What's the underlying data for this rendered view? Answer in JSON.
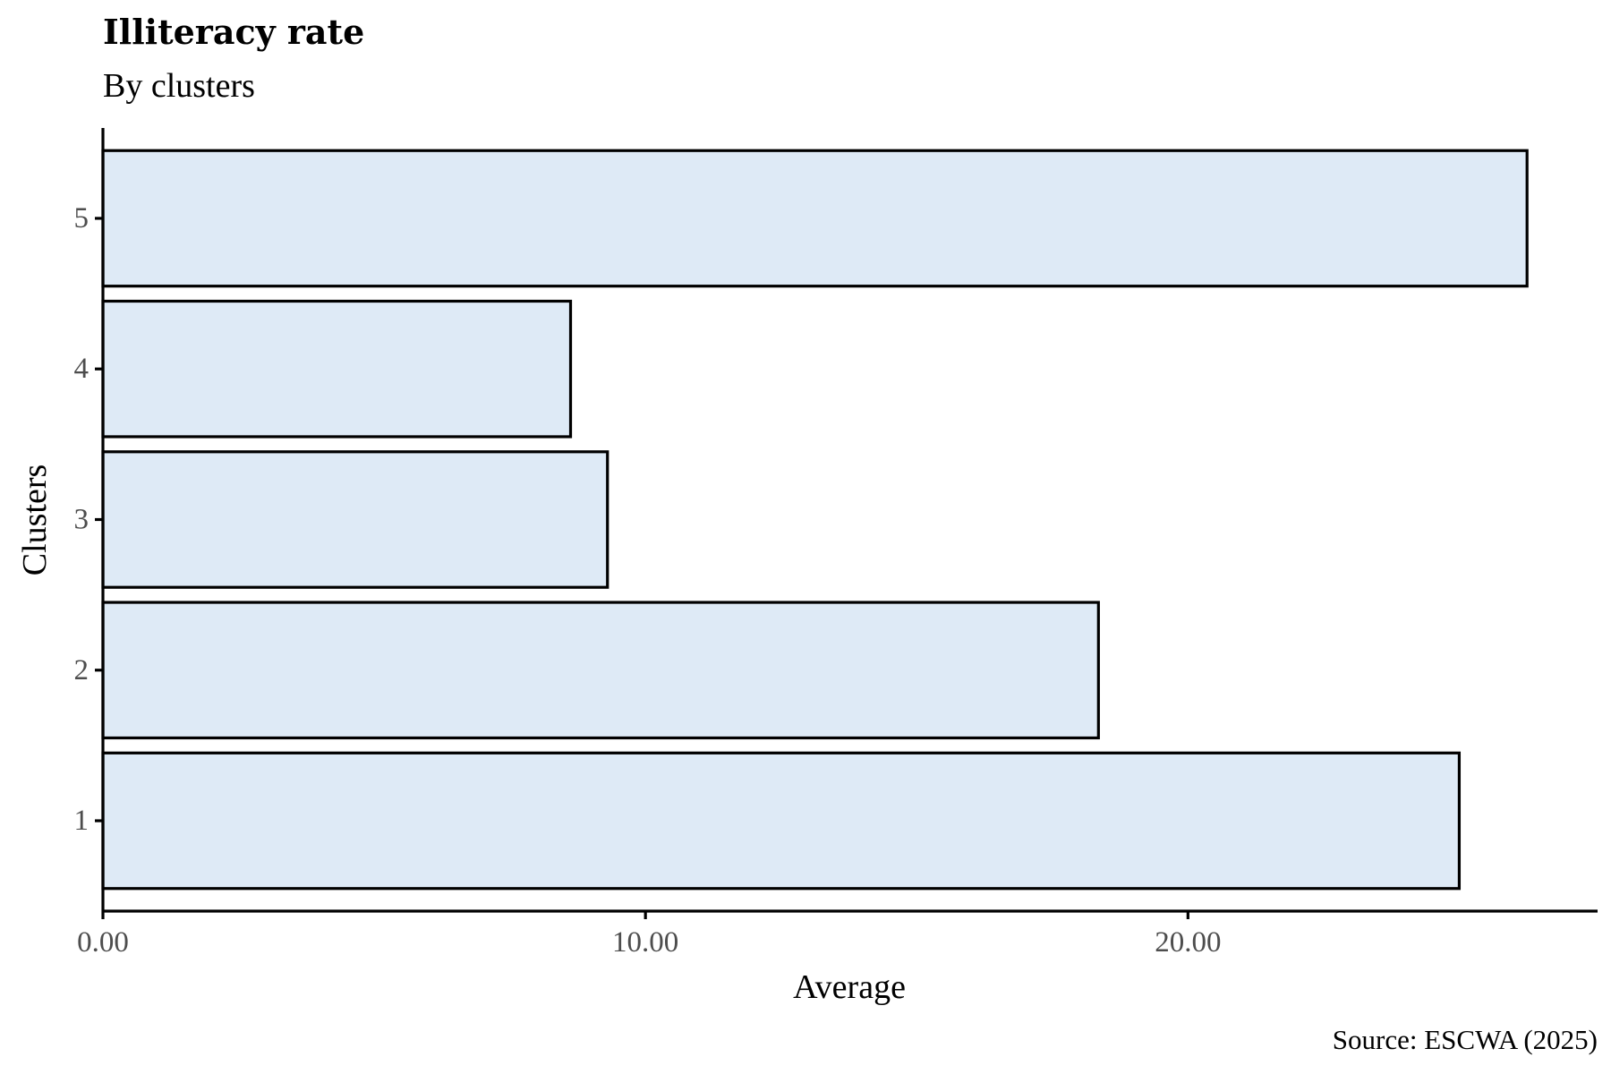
{
  "chart_data": {
    "type": "bar",
    "orientation": "horizontal",
    "title": "Illiteracy rate",
    "subtitle": "By clusters",
    "xlabel": "Average",
    "ylabel": "Clusters",
    "caption": "Source: ESCWA (2025)",
    "categories": [
      "1",
      "2",
      "3",
      "4",
      "5"
    ],
    "values": [
      25.0,
      18.35,
      9.3,
      8.62,
      26.25
    ],
    "xlim": [
      0,
      27.55
    ],
    "x_ticks": [
      0,
      10,
      20
    ],
    "x_tick_labels": [
      "0.00",
      "10.00",
      "20.00"
    ],
    "grid": false,
    "legend": "none",
    "colors": {
      "bar_fill": "#deeaf6",
      "bar_stroke": "#000000",
      "axis": "#000000",
      "tick_text": "#4d4d4d"
    }
  }
}
